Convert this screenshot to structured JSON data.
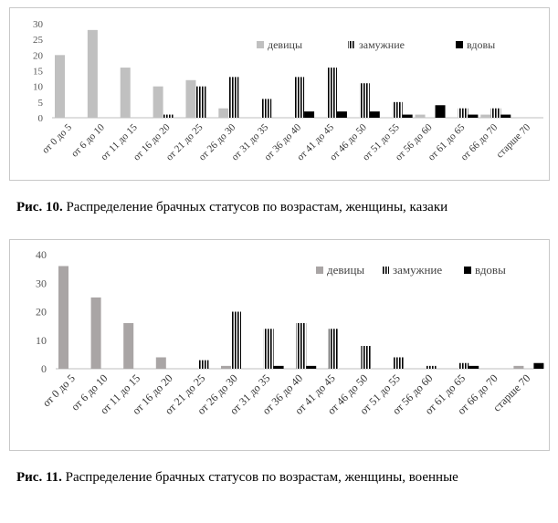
{
  "chart_data": [
    {
      "type": "bar",
      "categories": [
        "от 0 до 5",
        "от 6 до 10",
        "от 11 до 15",
        "от 16 до 20",
        "от 21 до 25",
        "от 26 до 30",
        "от 31 до 35",
        "от 36 до 40",
        "от 41 до 45",
        "от 46 до 50",
        "от 51 до 55",
        "от 56 до 60",
        "от 61 до 65",
        "от 66 до 70",
        "старше 70"
      ],
      "series": [
        {
          "name": "девицы",
          "values": [
            20,
            28,
            16,
            10,
            12,
            3,
            0,
            0,
            0,
            0,
            0,
            1,
            0,
            1,
            0
          ]
        },
        {
          "name": "замужние",
          "values": [
            0,
            0,
            0,
            1,
            10,
            13,
            6,
            13,
            16,
            11,
            5,
            0,
            3,
            3,
            0
          ]
        },
        {
          "name": "вдовы",
          "values": [
            0,
            0,
            0,
            0,
            0,
            0,
            0,
            2,
            2,
            2,
            1,
            4,
            1,
            1,
            0
          ]
        }
      ],
      "ylim": [
        0,
        30
      ],
      "yticks": [
        "0",
        "5",
        "10",
        "15",
        "20",
        "25",
        "30"
      ],
      "ytick_values": [
        0,
        5,
        10,
        15,
        20,
        25,
        30
      ],
      "grid": false,
      "legend": "top-right",
      "colors": {
        "девицы": "#c0c0c0",
        "замужние": "stripes",
        "вдовы": "#000000"
      }
    },
    {
      "type": "bar",
      "categories": [
        "от 0 до 5",
        "от 6 до 10",
        "от 11 до 15",
        "от 16 до 20",
        "от 21 до 25",
        "от 26 до 30",
        "от 31 до 35",
        "от 36 до 40",
        "от 41 до 45",
        "от 46 до 50",
        "от 51 до 55",
        "от 56 до 60",
        "от 61 до 65",
        "от 66 до 70",
        "старше 70"
      ],
      "series": [
        {
          "name": "девицы",
          "values": [
            36,
            25,
            16,
            4,
            0,
            1,
            0,
            0,
            0,
            0,
            0,
            0,
            0,
            0,
            1
          ]
        },
        {
          "name": "замужние",
          "values": [
            0,
            0,
            0,
            0,
            3,
            20,
            14,
            16,
            14,
            8,
            4,
            1,
            2,
            0,
            0
          ]
        },
        {
          "name": "вдовы",
          "values": [
            0,
            0,
            0,
            0,
            0,
            0,
            1,
            1,
            0,
            0,
            0,
            0,
            1,
            0,
            2
          ]
        }
      ],
      "ylim": [
        0,
        40
      ],
      "yticks": [
        "0",
        "10",
        "20",
        "30",
        "40"
      ],
      "ytick_values": [
        0,
        10,
        20,
        30,
        40
      ],
      "grid": false,
      "legend": "top-right",
      "colors": {
        "девицы": "#a9a5a5",
        "замужние": "stripes",
        "вдовы": "#000000"
      }
    }
  ],
  "captions": [
    {
      "label": "Рис. 10.",
      "text": " Распределение брачных статусов по возрастам, женщины, казаки"
    },
    {
      "label": "Рис. 11.",
      "text": " Распределение брачных статусов по возрастам, женщины, во­енные"
    }
  ]
}
